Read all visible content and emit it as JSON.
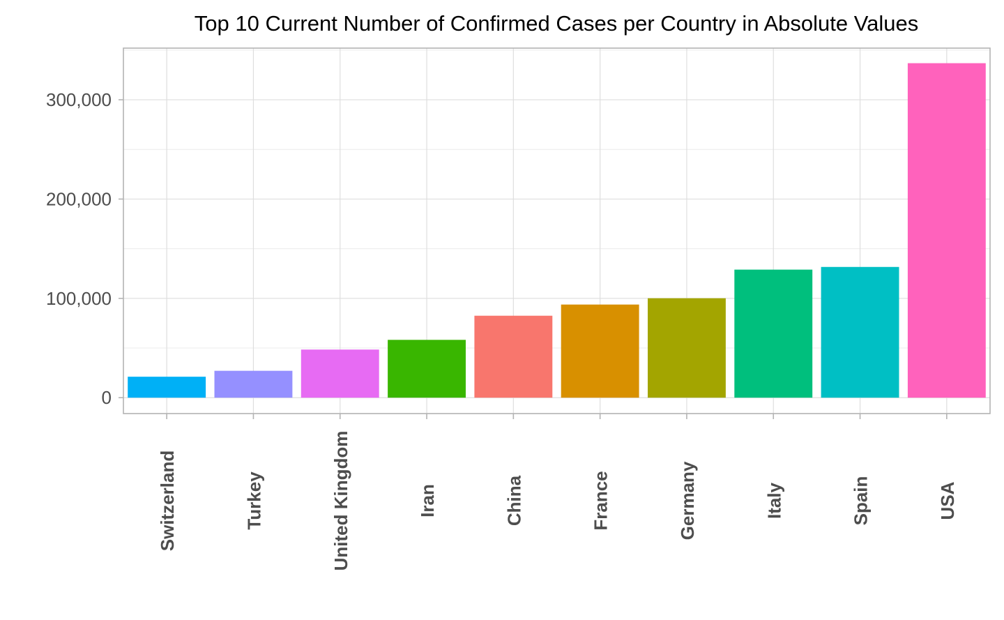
{
  "chart_data": {
    "type": "bar",
    "title": "Top 10 Current Number of Confirmed Cases per Country in Absolute Values",
    "xlabel": "",
    "ylabel": "",
    "categories": [
      "Switzerland",
      "Turkey",
      "United Kingdom",
      "Iran",
      "China",
      "France",
      "Germany",
      "Italy",
      "Spain",
      "USA"
    ],
    "values": [
      21100,
      27069,
      48451,
      58226,
      82526,
      93780,
      100123,
      128948,
      131646,
      336830
    ],
    "colors": [
      "#00B0F6",
      "#9590FF",
      "#E76BF3",
      "#39B600",
      "#F8766D",
      "#D89000",
      "#A3A500",
      "#00BF7D",
      "#00BFC4",
      "#FF62BC"
    ],
    "ylim": [
      -16000,
      352000
    ],
    "yticks": [
      0,
      100000,
      200000,
      300000
    ],
    "ytick_labels": [
      "0",
      "100,000",
      "200,000",
      "300,000"
    ],
    "grid": true,
    "legend": "none"
  }
}
